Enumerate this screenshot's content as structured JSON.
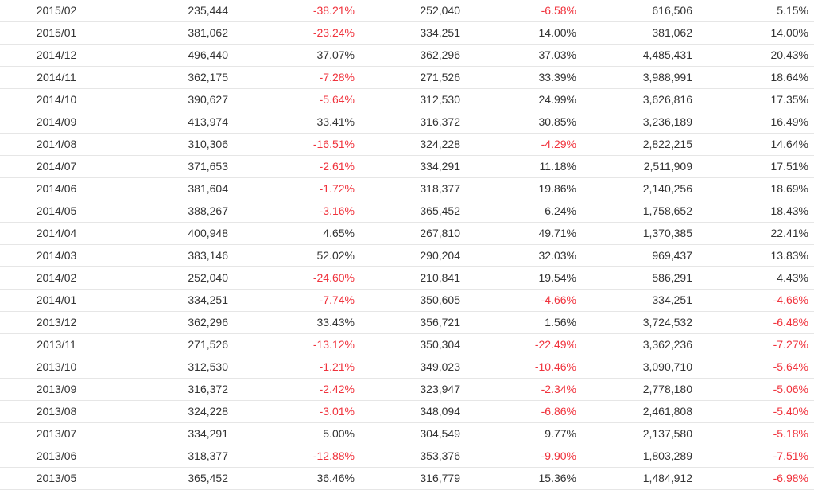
{
  "colors": {
    "text": "#333333",
    "negative": "#f0333d",
    "row_border": "#e6e6e6"
  },
  "table": {
    "rows": [
      [
        "2015/02",
        "235,444",
        "-38.21%",
        "252,040",
        "-6.58%",
        "616,506",
        "5.15%"
      ],
      [
        "2015/01",
        "381,062",
        "-23.24%",
        "334,251",
        "14.00%",
        "381,062",
        "14.00%"
      ],
      [
        "2014/12",
        "496,440",
        "37.07%",
        "362,296",
        "37.03%",
        "4,485,431",
        "20.43%"
      ],
      [
        "2014/11",
        "362,175",
        "-7.28%",
        "271,526",
        "33.39%",
        "3,988,991",
        "18.64%"
      ],
      [
        "2014/10",
        "390,627",
        "-5.64%",
        "312,530",
        "24.99%",
        "3,626,816",
        "17.35%"
      ],
      [
        "2014/09",
        "413,974",
        "33.41%",
        "316,372",
        "30.85%",
        "3,236,189",
        "16.49%"
      ],
      [
        "2014/08",
        "310,306",
        "-16.51%",
        "324,228",
        "-4.29%",
        "2,822,215",
        "14.64%"
      ],
      [
        "2014/07",
        "371,653",
        "-2.61%",
        "334,291",
        "11.18%",
        "2,511,909",
        "17.51%"
      ],
      [
        "2014/06",
        "381,604",
        "-1.72%",
        "318,377",
        "19.86%",
        "2,140,256",
        "18.69%"
      ],
      [
        "2014/05",
        "388,267",
        "-3.16%",
        "365,452",
        "6.24%",
        "1,758,652",
        "18.43%"
      ],
      [
        "2014/04",
        "400,948",
        "4.65%",
        "267,810",
        "49.71%",
        "1,370,385",
        "22.41%"
      ],
      [
        "2014/03",
        "383,146",
        "52.02%",
        "290,204",
        "32.03%",
        "969,437",
        "13.83%"
      ],
      [
        "2014/02",
        "252,040",
        "-24.60%",
        "210,841",
        "19.54%",
        "586,291",
        "4.43%"
      ],
      [
        "2014/01",
        "334,251",
        "-7.74%",
        "350,605",
        "-4.66%",
        "334,251",
        "-4.66%"
      ],
      [
        "2013/12",
        "362,296",
        "33.43%",
        "356,721",
        "1.56%",
        "3,724,532",
        "-6.48%"
      ],
      [
        "2013/11",
        "271,526",
        "-13.12%",
        "350,304",
        "-22.49%",
        "3,362,236",
        "-7.27%"
      ],
      [
        "2013/10",
        "312,530",
        "-1.21%",
        "349,023",
        "-10.46%",
        "3,090,710",
        "-5.64%"
      ],
      [
        "2013/09",
        "316,372",
        "-2.42%",
        "323,947",
        "-2.34%",
        "2,778,180",
        "-5.06%"
      ],
      [
        "2013/08",
        "324,228",
        "-3.01%",
        "348,094",
        "-6.86%",
        "2,461,808",
        "-5.40%"
      ],
      [
        "2013/07",
        "334,291",
        "5.00%",
        "304,549",
        "9.77%",
        "2,137,580",
        "-5.18%"
      ],
      [
        "2013/06",
        "318,377",
        "-12.88%",
        "353,376",
        "-9.90%",
        "1,803,289",
        "-7.51%"
      ],
      [
        "2013/05",
        "365,452",
        "36.46%",
        "316,779",
        "15.36%",
        "1,484,912",
        "-6.98%"
      ]
    ]
  }
}
